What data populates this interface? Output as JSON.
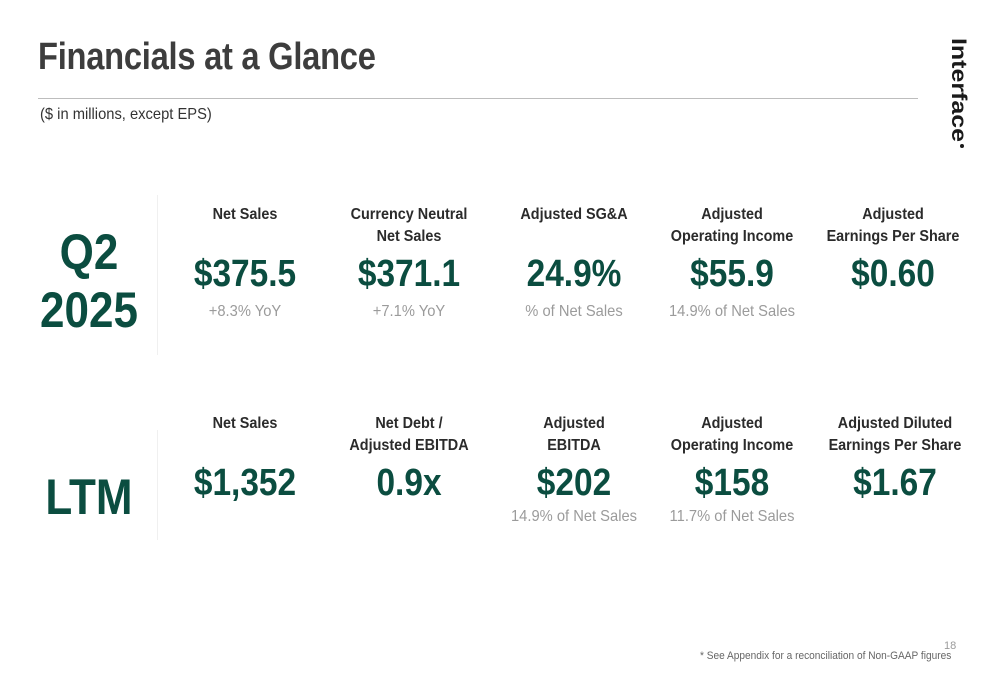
{
  "title": "Financials at a Glance",
  "subtitle": "($ in millions, except EPS)",
  "brand": {
    "logo_text": "Interface",
    "color": "#1a1a1a",
    "accent": "#0b4d40"
  },
  "q2": {
    "period_line1": "Q2",
    "period_line2": "2025",
    "metrics": [
      {
        "label": "Net Sales",
        "value": "$375.5",
        "note": "+8.3% YoY"
      },
      {
        "label": "Currency Neutral\nNet Sales",
        "value": "$371.1",
        "note": "+7.1% YoY"
      },
      {
        "label": "Adjusted SG&A",
        "value": "24.9%",
        "note": "% of Net Sales"
      },
      {
        "label": "Adjusted\nOperating Income",
        "value": "$55.9",
        "note": "14.9% of Net Sales"
      },
      {
        "label": "Adjusted\nEarnings Per Share",
        "value": "$0.60",
        "note": ""
      }
    ]
  },
  "ltm": {
    "period": "LTM",
    "metrics": [
      {
        "label": "Net Sales",
        "value": "$1,352",
        "note": ""
      },
      {
        "label": "Net Debt /\nAdjusted EBITDA",
        "value": "0.9x",
        "note": ""
      },
      {
        "label": "Adjusted\nEBITDA",
        "value": "$202",
        "note": "14.9% of Net Sales"
      },
      {
        "label": "Adjusted\nOperating Income",
        "value": "$158",
        "note": "11.7% of Net Sales"
      },
      {
        "label": "Adjusted Diluted\nEarnings Per Share",
        "value": "$1.67",
        "note": ""
      }
    ]
  },
  "page_number": "18",
  "footnote": "* See Appendix for a reconciliation of Non-GAAP figures"
}
